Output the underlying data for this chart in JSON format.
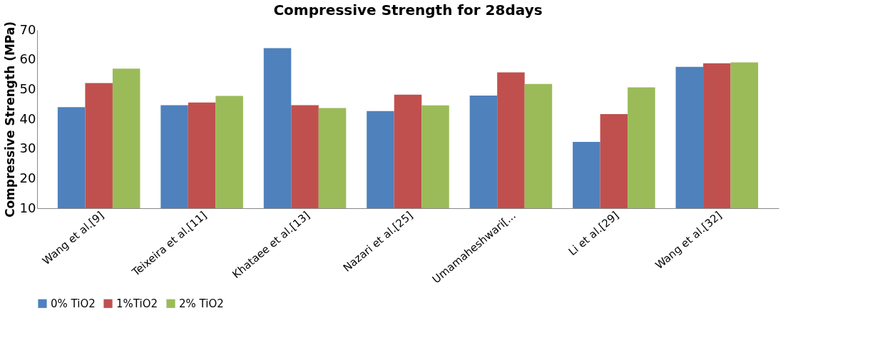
{
  "chart_data": {
    "type": "bar",
    "title": "Compressive Strength for 28days",
    "ylabel": "Compressive Strength (MPa)",
    "categories": [
      "Wang et al.[9]",
      "Teixeira et al.[11]",
      "Khataee et al.[13]",
      "Nazari et al.[25]",
      "Umamaheshwari[...",
      "Li et al.[29]",
      "Wang et al.[32]"
    ],
    "series": [
      {
        "name": "0% TiO2",
        "color": "#4f81bd",
        "values": [
          44.0,
          44.7,
          63.9,
          42.7,
          47.9,
          32.3,
          57.6
        ]
      },
      {
        "name": "1%TiO2",
        "color": "#c0504d",
        "values": [
          52.1,
          45.6,
          44.7,
          48.2,
          55.7,
          41.7,
          58.8
        ]
      },
      {
        "name": "2% TiO2",
        "color": "#9bbb59",
        "values": [
          57.0,
          47.8,
          43.7,
          44.6,
          51.8,
          50.7,
          59.1
        ]
      }
    ],
    "ylim": [
      10,
      70
    ],
    "yticks": [
      10,
      20,
      30,
      40,
      50,
      60,
      70
    ],
    "grid": false,
    "legend": "bottom"
  }
}
